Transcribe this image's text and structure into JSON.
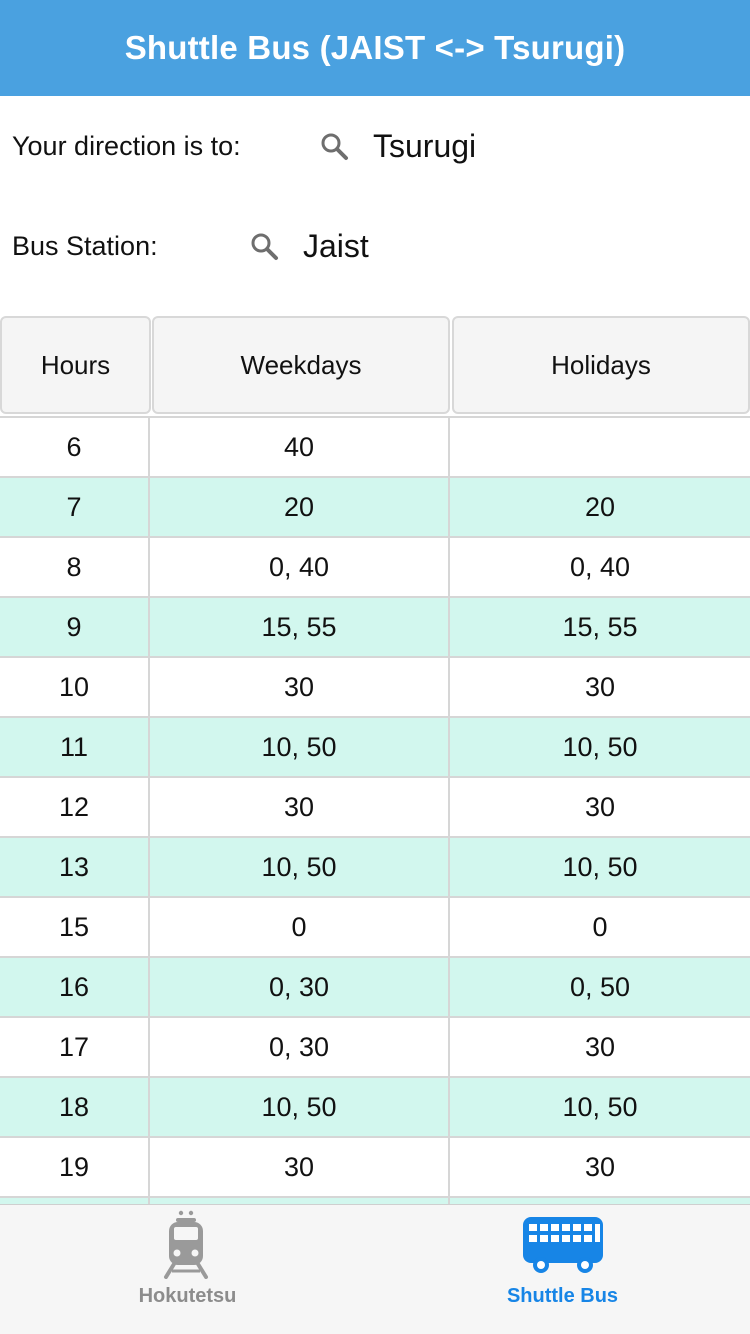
{
  "header": {
    "title": "Shuttle Bus (JAIST <-> Tsurugi)"
  },
  "filters": {
    "direction": {
      "label": "Your direction is to:",
      "value": "Tsurugi"
    },
    "station": {
      "label": "Bus Station:",
      "value": "Jaist"
    }
  },
  "table": {
    "columns": [
      "Hours",
      "Weekdays",
      "Holidays"
    ],
    "rows": [
      {
        "hour": "6",
        "weekdays": "40",
        "holidays": ""
      },
      {
        "hour": "7",
        "weekdays": "20",
        "holidays": "20"
      },
      {
        "hour": "8",
        "weekdays": "0, 40",
        "holidays": "0, 40"
      },
      {
        "hour": "9",
        "weekdays": "15, 55",
        "holidays": "15, 55"
      },
      {
        "hour": "10",
        "weekdays": "30",
        "holidays": "30"
      },
      {
        "hour": "11",
        "weekdays": "10, 50",
        "holidays": "10, 50"
      },
      {
        "hour": "12",
        "weekdays": "30",
        "holidays": "30"
      },
      {
        "hour": "13",
        "weekdays": "10, 50",
        "holidays": "10, 50"
      },
      {
        "hour": "15",
        "weekdays": "0",
        "holidays": "0"
      },
      {
        "hour": "16",
        "weekdays": "0, 30",
        "holidays": "0, 50"
      },
      {
        "hour": "17",
        "weekdays": "0, 30",
        "holidays": "30"
      },
      {
        "hour": "18",
        "weekdays": "10, 50",
        "holidays": "10, 50"
      },
      {
        "hour": "19",
        "weekdays": "30",
        "holidays": "30"
      }
    ]
  },
  "tabbar": {
    "tabs": [
      {
        "label": "Hokutetsu",
        "icon": "train-icon",
        "active": false
      },
      {
        "label": "Shuttle Bus",
        "icon": "bus-icon",
        "active": true
      }
    ]
  },
  "colors": {
    "header": "#4aa1e0",
    "row_alt": "#d2f7ee",
    "tab_active": "#1785e6",
    "tab_inactive": "#8c8c8c"
  }
}
